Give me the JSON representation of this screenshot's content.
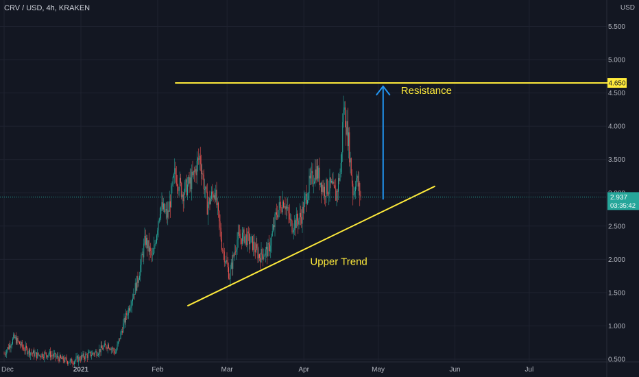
{
  "header": {
    "symbol": "CRV / USD, 4h, KRAKEN",
    "currency": "USD"
  },
  "colors": {
    "background": "#131722",
    "grid": "#1f2330",
    "up": "#26a69a",
    "down": "#ef5350",
    "yellow": "#ffeb3b",
    "arrow": "#2196f3",
    "price_tag": "#26a69a"
  },
  "chart_data": {
    "type": "candlestick",
    "title": "CRV / USD, 4h, KRAKEN",
    "ylabel": "USD",
    "ylim": [
      0.45,
      5.75
    ],
    "y_ticks": [
      "5.500",
      "5.000",
      "4.500",
      "4.000",
      "3.500",
      "3.000",
      "2.500",
      "2.000",
      "1.500",
      "1.000",
      "0.500"
    ],
    "y_tick_values": [
      5.5,
      5.0,
      4.5,
      4.0,
      3.5,
      3.0,
      2.5,
      2.0,
      1.5,
      1.0,
      0.5
    ],
    "x_ticks": [
      "Dec",
      "2021",
      "Feb",
      "Mar",
      "Apr",
      "May",
      "Jun",
      "Jul"
    ],
    "price_path": [
      [
        "2020-12-01",
        0.58
      ],
      [
        "2020-12-05",
        0.82
      ],
      [
        "2020-12-09",
        0.66
      ],
      [
        "2020-12-14",
        0.56
      ],
      [
        "2020-12-19",
        0.58
      ],
      [
        "2020-12-24",
        0.5
      ],
      [
        "2020-12-28",
        0.46
      ],
      [
        "2021-01-02",
        0.54
      ],
      [
        "2021-01-07",
        0.6
      ],
      [
        "2021-01-12",
        0.72
      ],
      [
        "2021-01-15",
        0.6
      ],
      [
        "2021-01-18",
        1.0
      ],
      [
        "2021-01-21",
        1.35
      ],
      [
        "2021-01-24",
        1.7
      ],
      [
        "2021-01-27",
        2.3
      ],
      [
        "2021-01-30",
        2.0
      ],
      [
        "2021-02-02",
        2.8
      ],
      [
        "2021-02-05",
        2.65
      ],
      [
        "2021-02-08",
        3.3
      ],
      [
        "2021-02-11",
        3.0
      ],
      [
        "2021-02-15",
        3.2
      ],
      [
        "2021-02-18",
        3.55
      ],
      [
        "2021-02-21",
        2.8
      ],
      [
        "2021-02-24",
        3.05
      ],
      [
        "2021-02-27",
        2.2
      ],
      [
        "2021-03-02",
        1.75
      ],
      [
        "2021-03-05",
        2.3
      ],
      [
        "2021-03-08",
        2.35
      ],
      [
        "2021-03-11",
        2.25
      ],
      [
        "2021-03-14",
        2.05
      ],
      [
        "2021-03-18",
        2.15
      ],
      [
        "2021-03-21",
        2.7
      ],
      [
        "2021-03-24",
        2.9
      ],
      [
        "2021-03-27",
        2.5
      ],
      [
        "2021-03-31",
        2.65
      ],
      [
        "2021-04-03",
        3.1
      ],
      [
        "2021-04-06",
        3.35
      ],
      [
        "2021-04-09",
        3.05
      ],
      [
        "2021-04-12",
        3.1
      ],
      [
        "2021-04-14",
        2.95
      ],
      [
        "2021-04-16",
        3.4
      ],
      [
        "2021-04-17",
        4.3
      ],
      [
        "2021-04-19",
        3.8
      ],
      [
        "2021-04-21",
        2.95
      ],
      [
        "2021-04-22",
        3.25
      ],
      [
        "2021-04-24",
        2.937
      ]
    ],
    "annotations": {
      "resistance_label": "Resistance",
      "resistance_level": 4.65,
      "resistance_from": "2021-02-08",
      "resistance_to": "2021-08-04",
      "trend_label": "Upper Trend",
      "trend_from": [
        "2021-02-13",
        1.3
      ],
      "trend_to": [
        "2021-05-24",
        3.1
      ],
      "arrow_from": [
        "2021-05-03",
        2.9
      ],
      "arrow_to": [
        "2021-05-03",
        4.6
      ]
    },
    "resistance_tag": "4.650",
    "last_price": "2.937",
    "last_price_value": 2.937,
    "countdown": "03:35:42"
  }
}
